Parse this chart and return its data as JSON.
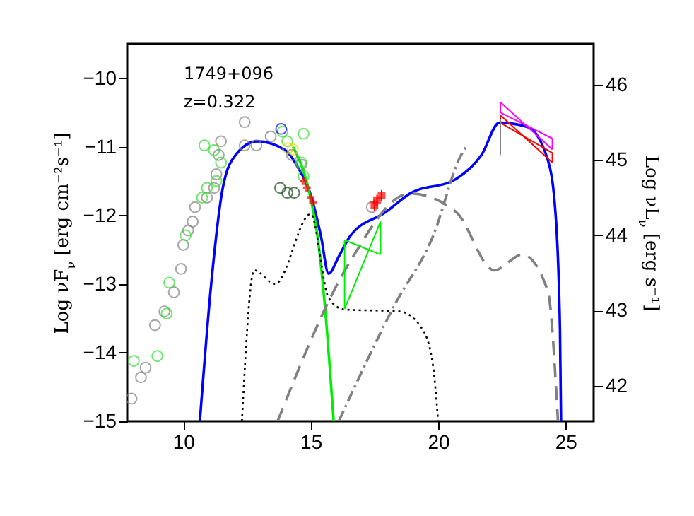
{
  "chart_data": {
    "type": "line",
    "ylabel": "Log νF$_{ν}$ [erg cm⁻²s⁻¹]",
    "y2label": "Log νL$_{ν}$ [erg s⁻¹]",
    "annotations": [
      "1749+096",
      "z=0.322"
    ],
    "xlim": [
      7.8,
      26.1
    ],
    "xticks": [
      10,
      15,
      20,
      25
    ],
    "ylim": [
      -15,
      -9.5
    ],
    "yticks": [
      -15,
      -14,
      -13,
      -12,
      -11,
      -10
    ],
    "y2lim": [
      41.53,
      46.54
    ],
    "y2ticks": [
      42,
      43,
      44,
      45,
      46
    ],
    "grid": false,
    "series": [
      {
        "type": "scatter",
        "marker": "circle",
        "color": "#808080",
        "x": [
          7.97,
          8.34,
          8.52,
          8.89,
          9.26,
          9.63,
          9.91,
          10.0,
          10.19,
          10.37,
          10.46,
          10.93,
          11.21,
          11.3,
          11.39,
          11.48,
          12.41,
          12.41,
          12.87,
          13.43,
          14.26,
          14.63,
          17.4
        ],
        "values": [
          -14.67,
          -14.36,
          -14.22,
          -13.6,
          -13.4,
          -13.12,
          -12.78,
          -12.43,
          -12.22,
          -12.09,
          -11.88,
          -11.74,
          -11.6,
          -11.4,
          -11.12,
          -10.92,
          -10.64,
          -10.98,
          -10.98,
          -10.85,
          -11.12,
          -11.26,
          -11.88
        ]
      },
      {
        "type": "scatter",
        "marker": "circle",
        "color": "#33dd33",
        "x": [
          8.06,
          8.98,
          9.35,
          9.45,
          10.09,
          10.74,
          10.83,
          10.93,
          11.21,
          11.3,
          11.48,
          13.89,
          14.08,
          14.72,
          14.63,
          14.72
        ],
        "values": [
          -14.12,
          -14.05,
          -13.43,
          -12.98,
          -12.29,
          -11.74,
          -10.98,
          -11.6,
          -11.05,
          -11.5,
          -11.23,
          -10.78,
          -10.92,
          -10.81,
          -11.23,
          -11.43
        ]
      },
      {
        "type": "scatter",
        "marker": "circle",
        "color": "#1a4d1a",
        "x": [
          13.8,
          14.08,
          14.35
        ],
        "values": [
          -11.6,
          -11.67,
          -11.67
        ]
      },
      {
        "type": "scatter",
        "marker": "circle",
        "color": "#0000ff",
        "x": [
          13.84
        ],
        "values": [
          -10.74
        ]
      },
      {
        "type": "scatter",
        "marker": "circle",
        "color": "#dddd00",
        "x": [
          14.11,
          14.3
        ],
        "values": [
          -11.02,
          -11.04
        ]
      },
      {
        "type": "scatter",
        "marker": "cross",
        "color": "#ff0000",
        "x": [
          14.72,
          14.85,
          15.0,
          15.09
        ],
        "values": [
          -11.5,
          -11.6,
          -11.74,
          -11.81
        ]
      },
      {
        "type": "scatter",
        "marker": "square",
        "color": "#ff0000",
        "x": [
          17.5,
          17.6,
          17.78
        ],
        "values": [
          -11.85,
          -11.78,
          -11.71
        ],
        "errors": [
          0.08,
          0.08,
          0.08
        ]
      },
      {
        "line_style": "solid",
        "color": "#0000ff",
        "x": [
          10.65,
          11.1,
          11.55,
          12.05,
          12.9,
          14.0,
          14.5,
          15.0,
          15.4,
          15.7,
          16.1,
          16.55,
          17.95,
          18.9,
          20.7,
          21.7,
          22.4,
          23.5,
          24.3,
          24.6,
          24.78,
          24.82
        ],
        "values": [
          -15,
          -12.98,
          -11.6,
          -11.12,
          -10.92,
          -11.05,
          -11.3,
          -11.7,
          -12.3,
          -12.85,
          -12.6,
          -12.3,
          -11.95,
          -11.68,
          -11.47,
          -11.12,
          -10.65,
          -10.71,
          -11.19,
          -11.95,
          -13.67,
          -15
        ]
      },
      {
        "line_style": "solid",
        "color": "#00ee00",
        "x": [
          14.3,
          14.9,
          15.3,
          15.55,
          15.9
        ],
        "values": [
          -11.0,
          -11.6,
          -12.4,
          -13.3,
          -15
        ]
      },
      {
        "line_style": "dotted",
        "color": "#000000",
        "x": [
          12.3,
          12.78,
          13.6,
          15.0,
          15.7,
          16.3,
          18.5,
          19.4,
          19.8,
          20.0
        ],
        "values": [
          -15,
          -12.8,
          -13.0,
          -11.98,
          -13.2,
          -13.37,
          -13.4,
          -13.67,
          -14.2,
          -15
        ]
      },
      {
        "line_style": "dashed",
        "color": "#808080",
        "x": [
          13.7,
          16.5,
          18.9,
          20.7,
          22.2,
          23.3,
          24.3,
          24.7
        ],
        "values": [
          -15,
          -12.7,
          -11.68,
          -11.95,
          -12.8,
          -12.57,
          -13.1,
          -15
        ]
      },
      {
        "line_style": "dashdot",
        "color": "#808080",
        "x": [
          16.1,
          18.3,
          19.8,
          20.9,
          21.1
        ],
        "values": [
          -15,
          -13.3,
          -12.3,
          -11.12,
          -11.0
        ]
      },
      {
        "line_style": "solid",
        "color": "#00ee00",
        "x": [
          16.33,
          17.74
        ],
        "values": [
          -12.36,
          -12.57
        ]
      },
      {
        "line_style": "solid",
        "color": "#00ee00",
        "x": [
          16.33,
          17.74
        ],
        "values": [
          -13.36,
          -12.09
        ]
      },
      {
        "line_style": "solid",
        "color": "#00ee00",
        "x": [
          16.33,
          16.33
        ],
        "values": [
          -12.36,
          -13.36
        ]
      },
      {
        "line_style": "solid",
        "color": "#00ee00",
        "x": [
          17.74,
          17.74
        ],
        "values": [
          -12.09,
          -12.57
        ]
      },
      {
        "line_style": "solid",
        "color": "#ff00ff",
        "x": [
          22.44,
          24.48
        ],
        "values": [
          -10.35,
          -11.04
        ]
      },
      {
        "line_style": "solid",
        "color": "#ff00ff",
        "x": [
          22.44,
          24.48
        ],
        "values": [
          -10.5,
          -10.88
        ]
      },
      {
        "line_style": "solid",
        "color": "#ff00ff",
        "x": [
          22.44,
          22.44
        ],
        "values": [
          -10.35,
          -10.5
        ]
      },
      {
        "line_style": "solid",
        "color": "#ff00ff",
        "x": [
          24.48,
          24.48
        ],
        "values": [
          -10.88,
          -11.04
        ]
      },
      {
        "line_style": "solid",
        "color": "#ff0000",
        "x": [
          22.44,
          24.48
        ],
        "values": [
          -10.54,
          -11.23
        ]
      },
      {
        "line_style": "solid",
        "color": "#ff0000",
        "x": [
          22.44,
          24.48
        ],
        "values": [
          -10.65,
          -11.09
        ]
      },
      {
        "line_style": "solid",
        "color": "#ff0000",
        "x": [
          22.44,
          22.44
        ],
        "values": [
          -10.54,
          -10.65
        ]
      },
      {
        "line_style": "solid",
        "color": "#ff0000",
        "x": [
          24.48,
          24.48
        ],
        "values": [
          -11.09,
          -11.23
        ]
      },
      {
        "line_style": "solid",
        "color": "#808080",
        "x": [
          22.44,
          22.44
        ],
        "values": [
          -10.6,
          -11.12
        ]
      }
    ]
  }
}
